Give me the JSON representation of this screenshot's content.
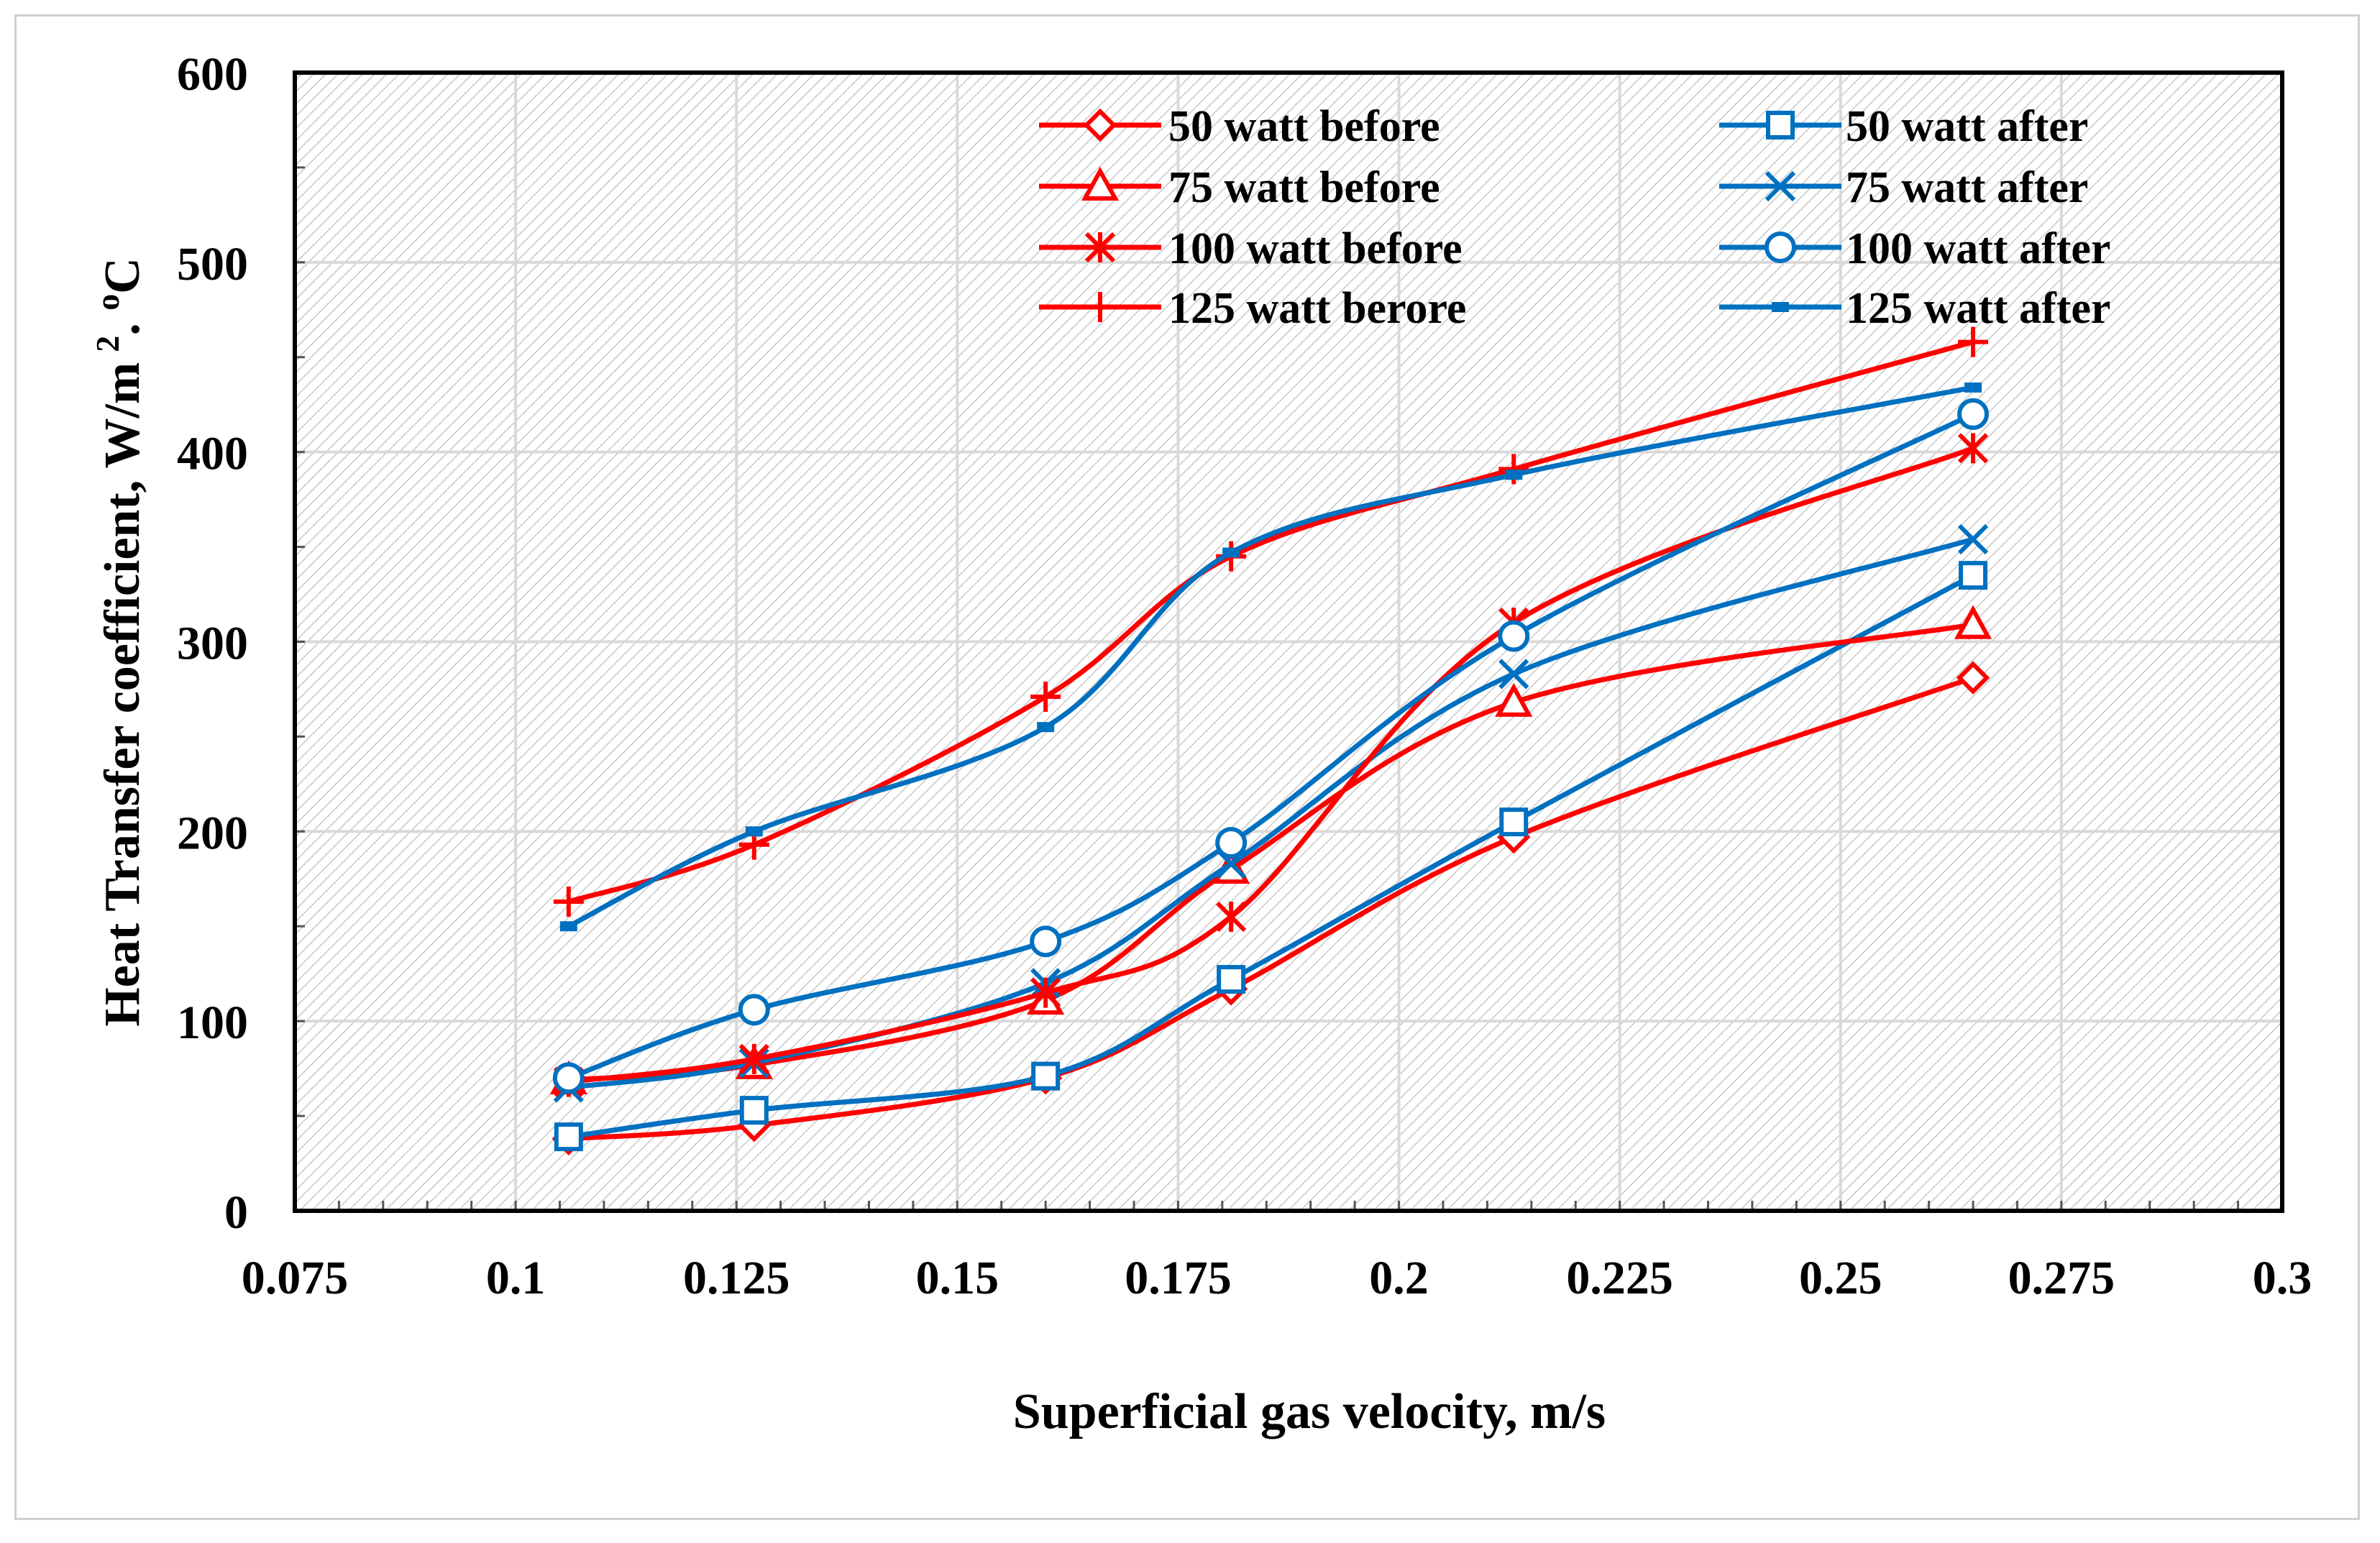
{
  "chart_data": {
    "type": "line",
    "title": "",
    "xlabel": "Superficial gas velocity, m/s",
    "ylabel": "Heat Transfer coefficient, W/m",
    "ylabel_sup": "2",
    "ylabel_tail": ". ",
    "ylabel_unit_sup": "o",
    "ylabel_unit": "C",
    "xlim": [
      0.075,
      0.3
    ],
    "ylim": [
      0,
      600
    ],
    "xticks": [
      0.075,
      0.1,
      0.125,
      0.15,
      0.175,
      0.2,
      0.225,
      0.25,
      0.275,
      0.3
    ],
    "xtick_labels": [
      "0.075",
      "0.1",
      "0.125",
      "0.15",
      "0.175",
      "0.2",
      "0.225",
      "0.25",
      "0.275",
      "0.3"
    ],
    "yticks": [
      0,
      100,
      200,
      300,
      400,
      500,
      600
    ],
    "ytick_labels": [
      "0",
      "100",
      "200",
      "300",
      "400",
      "500",
      "600"
    ],
    "grid": true,
    "legend_position": "top-right",
    "colors": {
      "red": "#ff0000",
      "blue": "#0070c0"
    },
    "series": [
      {
        "name": "50 watt before",
        "color": "#ff0000",
        "marker": "diamond",
        "x": [
          0.106,
          0.127,
          0.16,
          0.181,
          0.213,
          0.265
        ],
        "y": [
          38,
          45,
          70,
          117,
          197,
          281
        ]
      },
      {
        "name": "50 watt after",
        "color": "#0070c0",
        "marker": "square",
        "x": [
          0.106,
          0.127,
          0.16,
          0.181,
          0.213,
          0.265
        ],
        "y": [
          39,
          53,
          71,
          122,
          205,
          335
        ]
      },
      {
        "name": "75 watt before",
        "color": "#ff0000",
        "marker": "triangle",
        "x": [
          0.106,
          0.127,
          0.16,
          0.181,
          0.213,
          0.265
        ],
        "y": [
          69,
          77,
          111,
          180,
          268,
          309
        ]
      },
      {
        "name": "75 watt after",
        "color": "#0070c0",
        "marker": "x",
        "x": [
          0.106,
          0.127,
          0.16,
          0.181,
          0.213,
          0.265
        ],
        "y": [
          65,
          78,
          120,
          183,
          283,
          354
        ]
      },
      {
        "name": "100 watt before",
        "color": "#ff0000",
        "marker": "asterisk",
        "x": [
          0.106,
          0.127,
          0.16,
          0.181,
          0.213,
          0.265
        ],
        "y": [
          68,
          80,
          115,
          155,
          310,
          402
        ]
      },
      {
        "name": "100 watt after",
        "color": "#0070c0",
        "marker": "circle",
        "x": [
          0.106,
          0.127,
          0.16,
          0.181,
          0.213,
          0.265
        ],
        "y": [
          70,
          106,
          142,
          194,
          303,
          420
        ]
      },
      {
        "name": "125 watt berore",
        "color": "#ff0000",
        "marker": "plus",
        "x": [
          0.106,
          0.127,
          0.16,
          0.181,
          0.213,
          0.265
        ],
        "y": [
          163,
          193,
          271,
          345,
          391,
          458
        ]
      },
      {
        "name": "125 watt after",
        "color": "#0070c0",
        "marker": "dash",
        "x": [
          0.106,
          0.127,
          0.16,
          0.181,
          0.213,
          0.265
        ],
        "y": [
          150,
          200,
          255,
          347,
          388,
          434
        ]
      }
    ]
  }
}
